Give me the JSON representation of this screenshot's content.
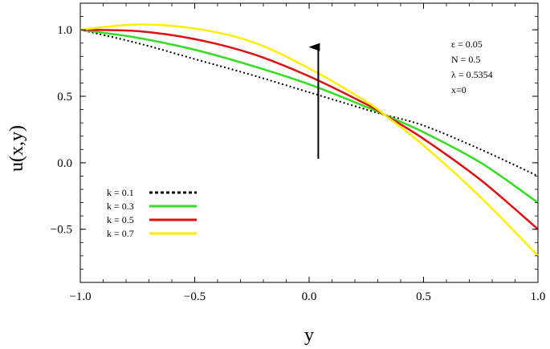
{
  "chart_data": {
    "type": "line",
    "xlabel": "y",
    "ylabel": "u(x,y)",
    "xlim": [
      -1.0,
      1.0
    ],
    "ylim": [
      -0.9,
      1.2
    ],
    "xticks": [
      -1.0,
      -0.5,
      0.0,
      0.5,
      1.0
    ],
    "xtick_labels": [
      "−1.0",
      "−0.5",
      "0.0",
      "0.5",
      "1.0"
    ],
    "yticks": [
      -0.5,
      0.0,
      0.5,
      1.0
    ],
    "ytick_labels": [
      "−0.5",
      "0.0",
      "0.5",
      "1.0"
    ],
    "grid": false,
    "legend_position": "bottom-left",
    "series": [
      {
        "name": "k = 0.1",
        "color": "#000000",
        "style": "dotted",
        "x": [
          -1.0,
          -0.75,
          -0.5,
          -0.25,
          0.0,
          0.25,
          0.33,
          0.5,
          0.75,
          1.0
        ],
        "y": [
          1.0,
          0.9,
          0.78,
          0.66,
          0.53,
          0.4,
          0.36,
          0.28,
          0.1,
          -0.1
        ]
      },
      {
        "name": "k = 0.3",
        "color": "#33dd22",
        "style": "solid",
        "x": [
          -1.0,
          -0.75,
          -0.5,
          -0.25,
          0.0,
          0.25,
          0.33,
          0.5,
          0.75,
          1.0
        ],
        "y": [
          1.0,
          0.94,
          0.85,
          0.73,
          0.59,
          0.42,
          0.36,
          0.23,
          0.0,
          -0.3
        ]
      },
      {
        "name": "k = 0.5",
        "color": "#dd1111",
        "style": "solid",
        "x": [
          -1.0,
          -0.75,
          -0.5,
          -0.25,
          0.0,
          0.25,
          0.33,
          0.5,
          0.75,
          1.0
        ],
        "y": [
          1.0,
          0.99,
          0.93,
          0.82,
          0.65,
          0.44,
          0.36,
          0.18,
          -0.13,
          -0.5
        ]
      },
      {
        "name": "k = 0.7",
        "color": "#ffee00",
        "style": "solid",
        "x": [
          -1.0,
          -0.75,
          -0.5,
          -0.25,
          0.0,
          0.25,
          0.33,
          0.5,
          0.75,
          1.0
        ],
        "y": [
          1.0,
          1.04,
          1.01,
          0.91,
          0.71,
          0.46,
          0.36,
          0.13,
          -0.26,
          -0.7
        ]
      }
    ],
    "parameters": [
      "ε = 0.05",
      "N = 0.5",
      "λ = 0.5354",
      "x=0"
    ],
    "arrow": {
      "from": [
        0.04,
        0.03
      ],
      "to": [
        0.04,
        0.87
      ]
    }
  }
}
